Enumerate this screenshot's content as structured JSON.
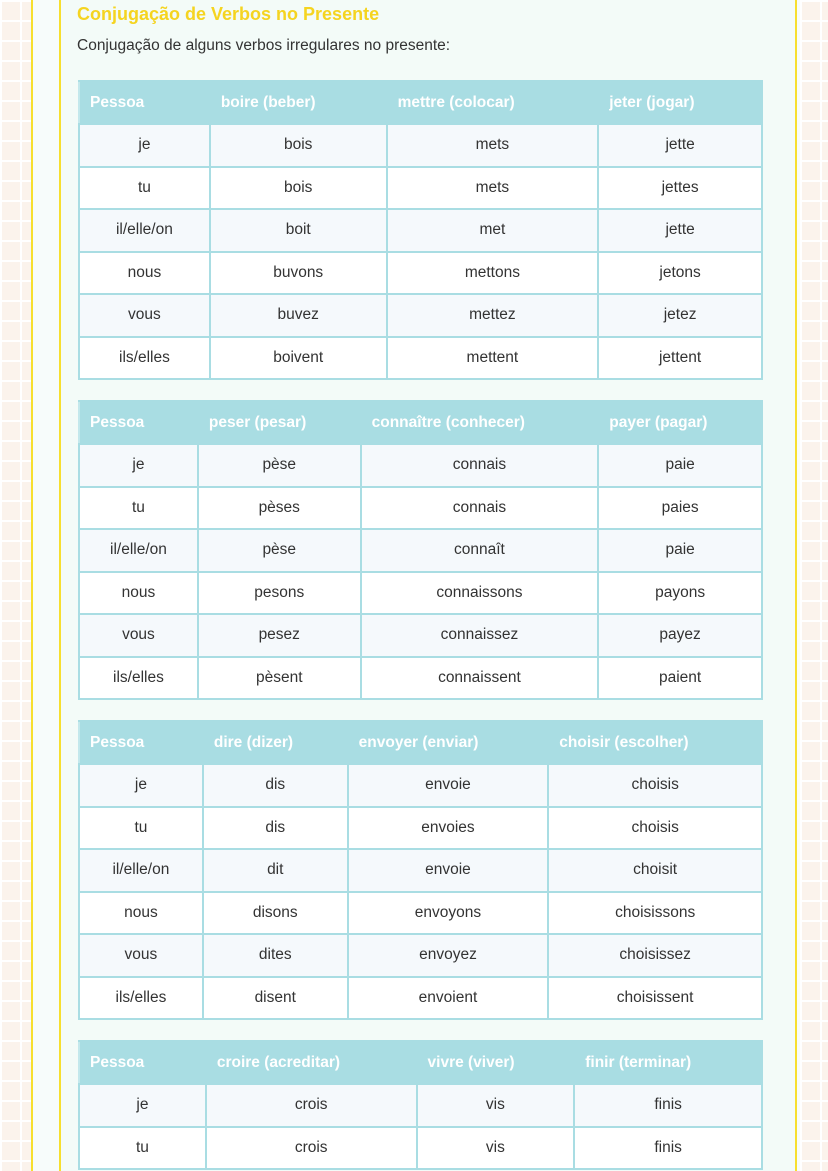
{
  "title": "Conjugação de Verbos no Presente",
  "subtitle": "Conjugação de alguns verbos irregulares no presente:",
  "tables": [
    {
      "headers": [
        "Pessoa",
        "boire (beber)",
        "mettre (colocar)",
        "jeter (jogar)"
      ],
      "rows": [
        [
          "je",
          "bois",
          "mets",
          "jette"
        ],
        [
          "tu",
          "bois",
          "mets",
          "jettes"
        ],
        [
          "il/elle/on",
          "boit",
          "met",
          "jette"
        ],
        [
          "nous",
          "buvons",
          "mettons",
          "jetons"
        ],
        [
          "vous",
          "buvez",
          "mettez",
          "jetez"
        ],
        [
          "ils/elles",
          "boivent",
          "mettent",
          "jettent"
        ]
      ]
    },
    {
      "headers": [
        "Pessoa",
        "peser (pesar)",
        "connaître (conhecer)",
        "payer (pagar)"
      ],
      "rows": [
        [
          "je",
          "pèse",
          "connais",
          "paie"
        ],
        [
          "tu",
          "pèses",
          "connais",
          "paies"
        ],
        [
          "il/elle/on",
          "pèse",
          "connaît",
          "paie"
        ],
        [
          "nous",
          "pesons",
          "connaissons",
          "payons"
        ],
        [
          "vous",
          "pesez",
          "connaissez",
          "payez"
        ],
        [
          "ils/elles",
          "pèsent",
          "connaissent",
          "paient"
        ]
      ]
    },
    {
      "headers": [
        "Pessoa",
        "dire (dizer)",
        "envoyer (enviar)",
        "choisir (escolher)"
      ],
      "rows": [
        [
          "je",
          "dis",
          "envoie",
          "choisis"
        ],
        [
          "tu",
          "dis",
          "envoies",
          "choisis"
        ],
        [
          "il/elle/on",
          "dit",
          "envoie",
          "choisit"
        ],
        [
          "nous",
          "disons",
          "envoyons",
          "choisissons"
        ],
        [
          "vous",
          "dites",
          "envoyez",
          "choisissez"
        ],
        [
          "ils/elles",
          "disent",
          "envoient",
          "choisissent"
        ]
      ]
    },
    {
      "headers": [
        "Pessoa",
        "croire (acreditar)",
        "vivre (viver)",
        "finir (terminar)"
      ],
      "rows": [
        [
          "je",
          "crois",
          "vis",
          "finis"
        ],
        [
          "tu",
          "crois",
          "vis",
          "finis"
        ]
      ]
    }
  ],
  "colors": {
    "accent": "#f5d420",
    "header_bg": "#a9dde3",
    "border": "#a9dde3"
  }
}
